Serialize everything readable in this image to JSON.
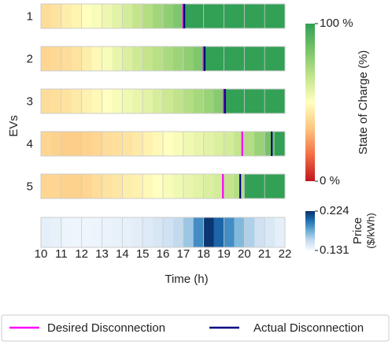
{
  "chart_data": {
    "type": "heatmap",
    "xlabel": "Time (h)",
    "ylabel": "EVs",
    "xlim": [
      10,
      22
    ],
    "xticks": [
      10,
      11,
      12,
      13,
      14,
      15,
      16,
      17,
      18,
      19,
      20,
      21,
      22
    ],
    "x": [
      10,
      10.5,
      11,
      11.5,
      12,
      12.5,
      13,
      13.5,
      14,
      14.5,
      15,
      15.5,
      16,
      16.5,
      17,
      17.5,
      18,
      18.5,
      19,
      19.5,
      20,
      20.5,
      21,
      21.5
    ],
    "soc_label": "State of Charge (%)",
    "soc_clim": [
      0,
      100
    ],
    "soc_colors": [
      "#c0151f",
      "#f46d43",
      "#fdc57f",
      "#ffffbf",
      "#c2e48a",
      "#78c469",
      "#32a055"
    ],
    "soc_ticks": [
      {
        "value": 100,
        "label": "100 %"
      },
      {
        "value": 0,
        "label": "0 %"
      }
    ],
    "rows": [
      {
        "name": "1",
        "values": [
          40,
          42,
          45,
          47,
          50,
          52,
          55,
          58,
          62,
          66,
          70,
          74,
          78,
          82,
          100,
          100,
          100,
          100,
          100,
          100,
          100,
          100,
          100,
          100
        ],
        "desired_disconnection": 17.0,
        "actual_disconnection": 17.05
      },
      {
        "name": "2",
        "values": [
          38,
          39,
          40,
          42,
          45,
          48,
          52,
          56,
          60,
          63,
          66,
          69,
          72,
          75,
          78,
          82,
          100,
          100,
          100,
          100,
          100,
          100,
          100,
          100
        ],
        "desired_disconnection": 18.0,
        "actual_disconnection": 18.05
      },
      {
        "name": "3",
        "values": [
          40,
          41,
          42,
          44,
          46,
          48,
          50,
          52,
          54,
          56,
          58,
          61,
          64,
          67,
          70,
          73,
          76,
          80,
          100,
          100,
          100,
          100,
          100,
          100
        ],
        "desired_disconnection": 19.0,
        "actual_disconnection": 19.05
      },
      {
        "name": "4",
        "values": [
          38,
          37,
          36,
          36,
          37,
          38,
          40,
          41,
          42,
          44,
          46,
          48,
          50,
          52,
          54,
          56,
          58,
          60,
          62,
          66,
          70,
          76,
          84,
          100
        ],
        "desired_disconnection": 19.9,
        "actual_disconnection": 21.35
      },
      {
        "name": "5",
        "values": [
          38,
          38,
          37,
          37,
          38,
          40,
          42,
          43,
          45,
          46,
          48,
          50,
          52,
          54,
          56,
          58,
          60,
          62,
          66,
          70,
          100,
          100,
          100,
          100
        ],
        "desired_disconnection": 18.95,
        "actual_disconnection": 19.8
      }
    ],
    "price_label": "Price",
    "price_unit": "($/kWh)",
    "price_clim": [
      0.131,
      0.224
    ],
    "price_colors": [
      "#f7fbff",
      "#c6dbef",
      "#6baed6",
      "#2171b5",
      "#08306b"
    ],
    "price_ticks": [
      0.224,
      0.131
    ],
    "price_values": [
      0.14,
      0.138,
      0.136,
      0.135,
      0.135,
      0.136,
      0.137,
      0.138,
      0.139,
      0.141,
      0.143,
      0.146,
      0.15,
      0.155,
      0.165,
      0.19,
      0.222,
      0.205,
      0.19,
      0.172,
      0.16,
      0.15,
      0.145,
      0.14
    ],
    "legend": [
      {
        "name": "Desired Disconnection",
        "color": "#ff00ff"
      },
      {
        "name": "Actual Disconnection",
        "color": "#000080"
      }
    ]
  }
}
